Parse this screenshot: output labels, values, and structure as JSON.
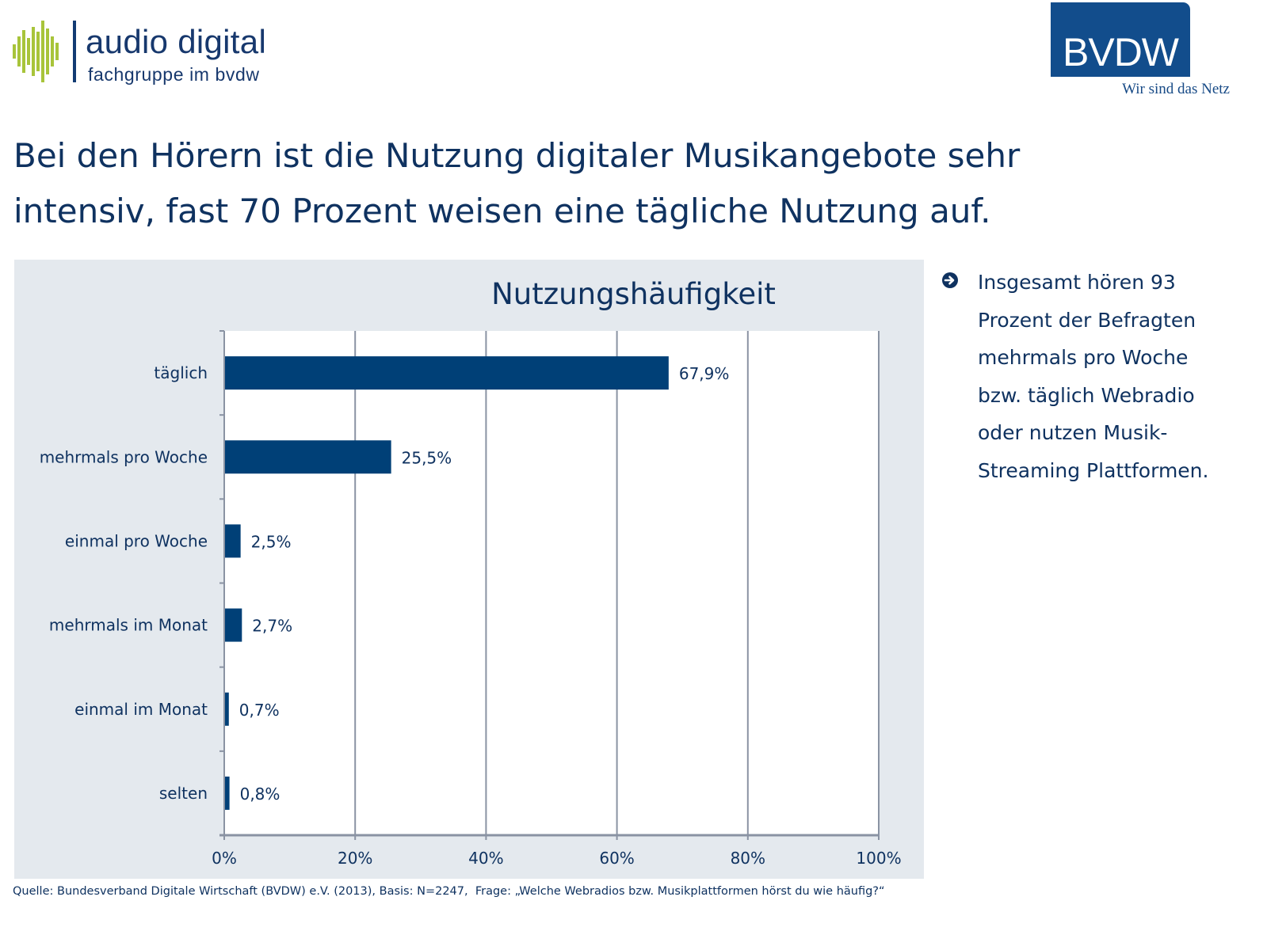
{
  "header": {
    "logo_left_title": "audio digital",
    "logo_left_subtitle": "fachgruppe im bvdw",
    "logo_right_text": "BVDW",
    "logo_right_slogan": "Wir sind das Netz"
  },
  "headline": "Bei den Hörern ist die Nutzung digitaler Musikangebote sehr intensiv, fast 70 Prozent weisen eine tägliche Nutzung auf.",
  "sidebar": {
    "bullet_icon": "arrow-circle-right-icon",
    "text": "Insgesamt hören 93\nProzent der Befragten\nmehrmals pro Woche\nbzw. täglich Webradio\noder nutzen Musik-\nStreaming Plattformen."
  },
  "footer": "Quelle: Bundesverband Digitale Wirtschaft (BVDW) e.V. (2013), Basis: N=2247,  Frage: „Welche Webradios bzw. Musikplattformen hörst du wie häufig?“",
  "colors": {
    "bar": "#004077",
    "text": "#0f3260",
    "panel": "#e4e9ee",
    "grid": "#8a93a3",
    "logo_green": "#a8c43a",
    "logo_blue": "#124d8c"
  },
  "chart_data": {
    "type": "bar",
    "orientation": "horizontal",
    "title": "Nutzungshäufigkeit",
    "categories": [
      "täglich",
      "mehrmals pro Woche",
      "einmal pro Woche",
      "mehrmals im Monat",
      "einmal im Monat",
      "selten"
    ],
    "values": [
      67.9,
      25.5,
      2.5,
      2.7,
      0.7,
      0.8
    ],
    "value_labels": [
      "67,9%",
      "25,5%",
      "2,5%",
      "2,7%",
      "0,7%",
      "0,8%"
    ],
    "xlim": [
      0,
      100
    ],
    "xticks": [
      0,
      20,
      40,
      60,
      80,
      100
    ],
    "xtick_labels": [
      "0%",
      "20%",
      "40%",
      "60%",
      "80%",
      "100%"
    ],
    "xlabel": "",
    "ylabel": "",
    "grid": true,
    "legend": "none"
  }
}
